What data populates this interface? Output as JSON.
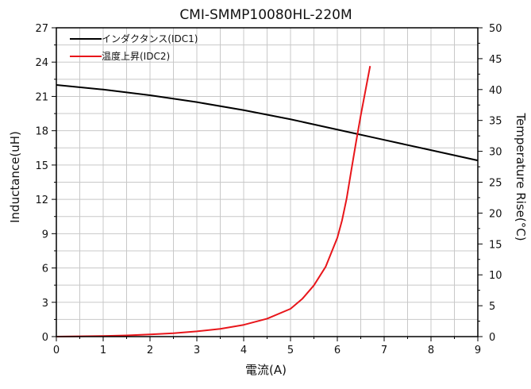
{
  "chart_data": {
    "type": "line",
    "title": "CMI-SMMP10080HL-220M",
    "xlabel": "電流(A)",
    "ylabel_left": "Inductance(uH)",
    "ylabel_right": "Temperature Rise(°C)",
    "xlim": [
      0,
      9
    ],
    "ylim_left": [
      0,
      27
    ],
    "ylim_right": [
      0,
      50
    ],
    "x_ticks": [
      "0",
      "1",
      "2",
      "3",
      "4",
      "5",
      "6",
      "7",
      "8",
      "9"
    ],
    "y_left_ticks": [
      "0",
      "3",
      "6",
      "9",
      "12",
      "15",
      "18",
      "21",
      "24",
      "27"
    ],
    "y_right_ticks": [
      "0",
      "5",
      "10",
      "15",
      "20",
      "25",
      "30",
      "35",
      "40",
      "45",
      "50"
    ],
    "grid": true,
    "legend_position": "top-left",
    "series": [
      {
        "name": "インダクタンス(IDC1)",
        "axis": "left",
        "color": "#000000",
        "x": [
          0,
          1,
          2,
          3,
          4,
          5,
          6,
          7,
          8,
          9
        ],
        "y": [
          22.0,
          21.6,
          21.1,
          20.5,
          19.8,
          19.0,
          18.1,
          17.2,
          16.3,
          15.4
        ]
      },
      {
        "name": "温度上昇(IDC2)",
        "axis": "right",
        "color": "#e8161b",
        "x": [
          0,
          0.5,
          1,
          1.5,
          2,
          2.5,
          3,
          3.5,
          4,
          4.5,
          5,
          5.25,
          5.5,
          5.75,
          6,
          6.1,
          6.2,
          6.3,
          6.4,
          6.5,
          6.6,
          6.7
        ],
        "y": [
          0,
          0.05,
          0.1,
          0.2,
          0.35,
          0.55,
          0.85,
          1.25,
          1.9,
          2.9,
          4.5,
          6.1,
          8.3,
          11.3,
          16.0,
          18.8,
          22.4,
          27.0,
          31.5,
          35.8,
          39.8,
          43.8
        ]
      }
    ]
  }
}
